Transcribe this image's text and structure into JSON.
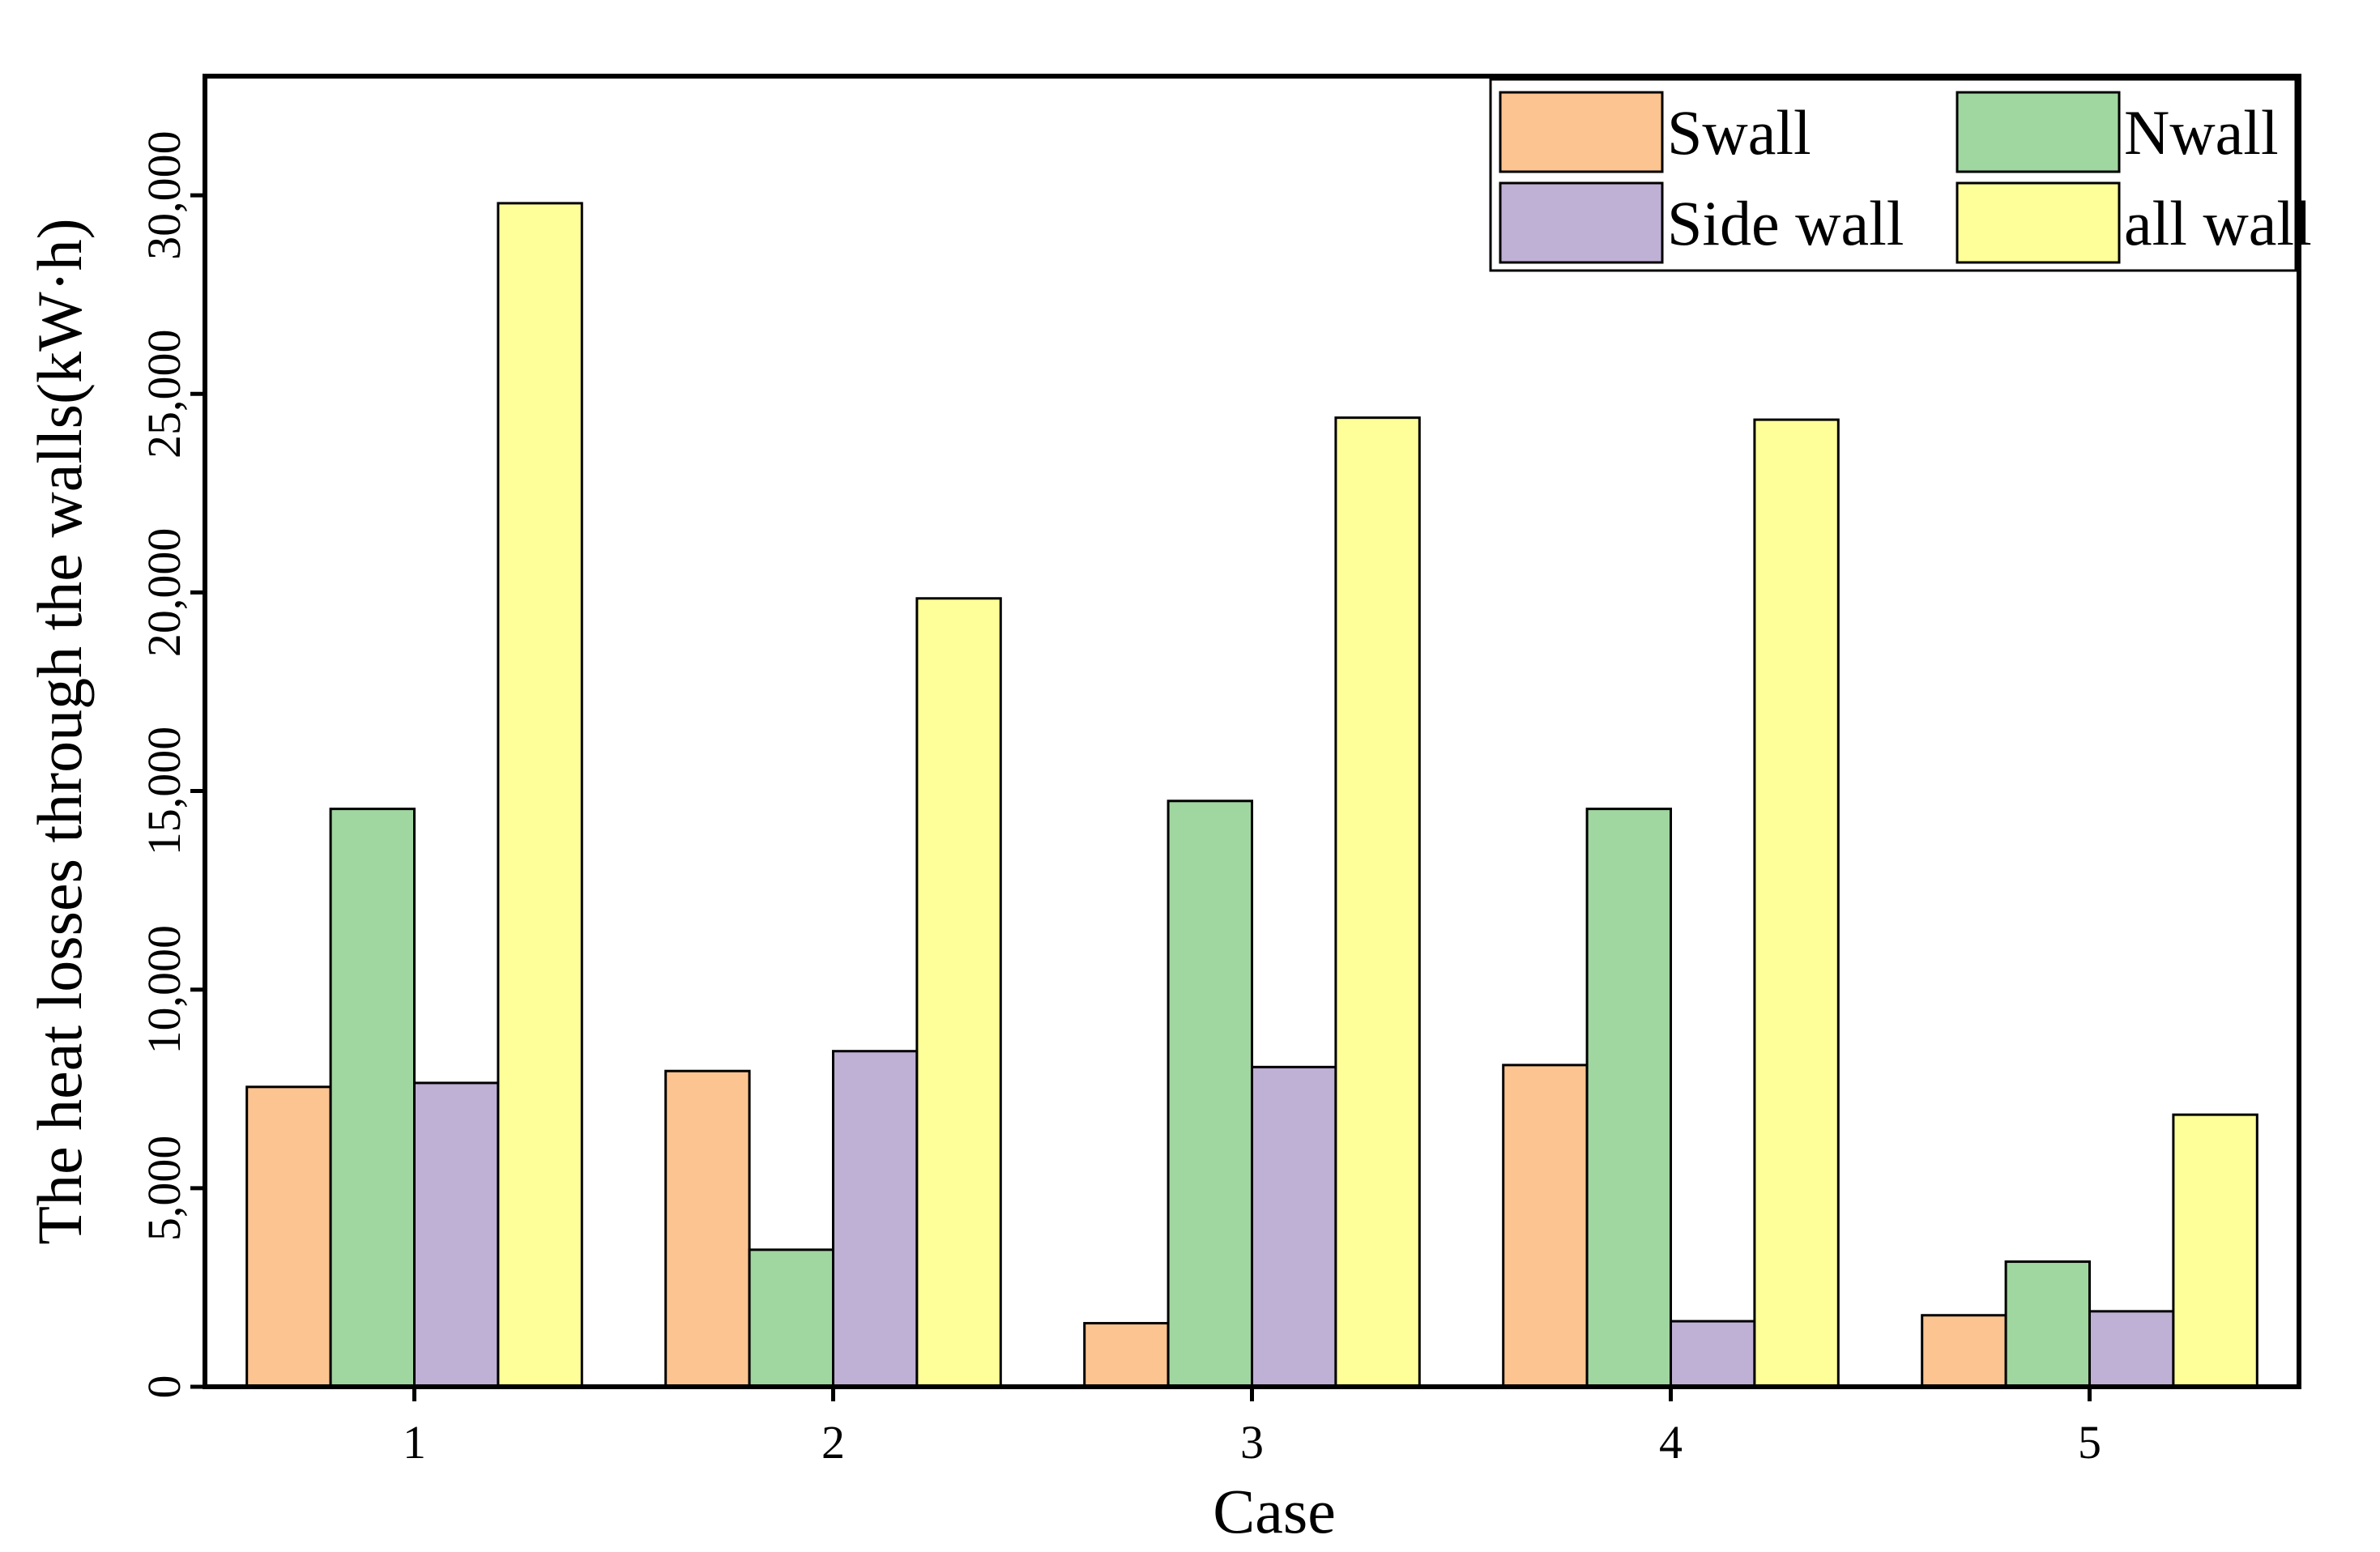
{
  "chart_data": {
    "type": "bar",
    "title": "",
    "xlabel": "Case",
    "ylabel": "The heat losses through the walls(kW·h)",
    "categories": [
      "1",
      "2",
      "3",
      "4",
      "5"
    ],
    "ylim": [
      0,
      33000
    ],
    "yticks": [
      0,
      5000,
      10000,
      15000,
      20000,
      25000,
      30000
    ],
    "ytick_labels": [
      "0",
      "5,000",
      "10,000",
      "15,000",
      "20,000",
      "25,000",
      "30,000"
    ],
    "grid": false,
    "legend_position": "top-right",
    "series": [
      {
        "name": "Swall",
        "color": "#FCC490",
        "values": [
          7550,
          7950,
          1600,
          8100,
          1800
        ]
      },
      {
        "name": "Nwall",
        "color": "#A0D6A0",
        "values": [
          14550,
          3450,
          14750,
          14550,
          3150
        ]
      },
      {
        "name": "Side wall",
        "color": "#BFB0D6",
        "values": [
          7650,
          8450,
          8050,
          1650,
          1900
        ]
      },
      {
        "name": "all wall",
        "color": "#FFFF99",
        "values": [
          29800,
          19850,
          24400,
          24350,
          6850
        ]
      }
    ]
  }
}
